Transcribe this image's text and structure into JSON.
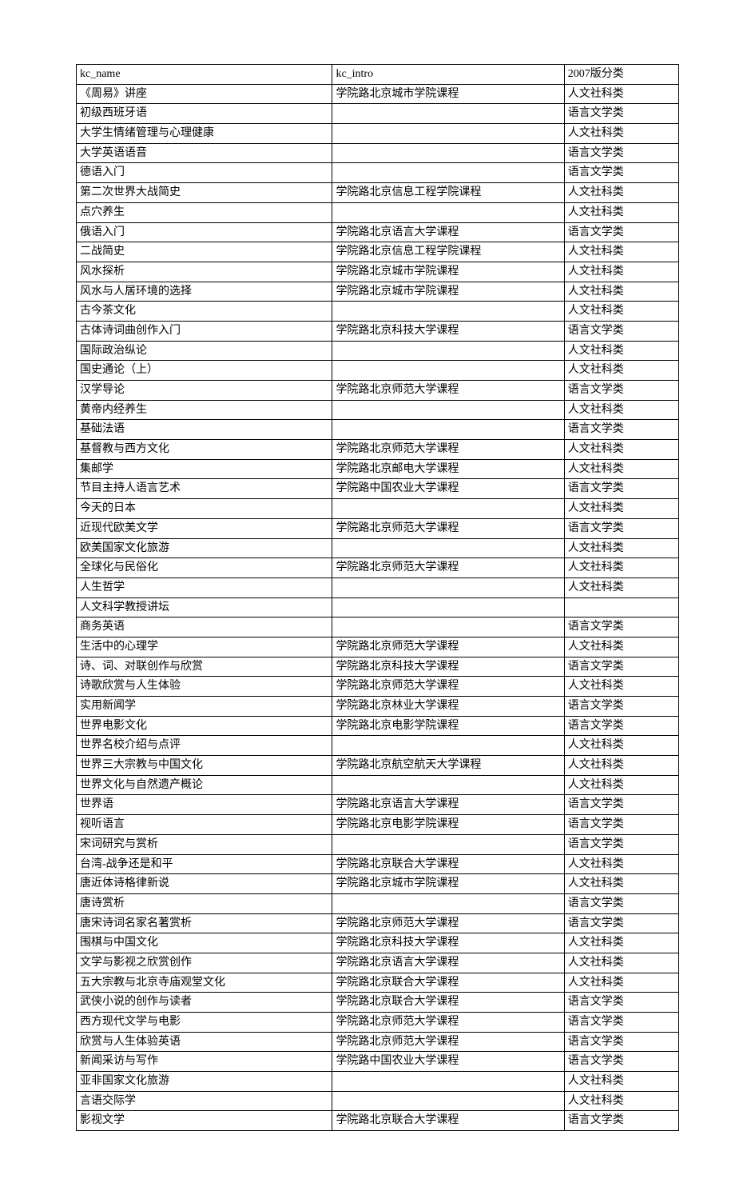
{
  "table": {
    "columns": [
      "kc_name",
      "kc_intro",
      "2007版分类"
    ],
    "col_widths": [
      "42.5%",
      "38.5%",
      "19%"
    ],
    "border_color": "#000000",
    "background_color": "#ffffff",
    "text_color": "#000000",
    "font_size": 14,
    "rows": [
      [
        "《周易》讲座",
        "学院路北京城市学院课程",
        "人文社科类"
      ],
      [
        "初级西班牙语",
        "",
        "语言文学类"
      ],
      [
        "大学生情绪管理与心理健康",
        "",
        "人文社科类"
      ],
      [
        "大学英语语音",
        "",
        "语言文学类"
      ],
      [
        "德语入门",
        "",
        "语言文学类"
      ],
      [
        "第二次世界大战简史",
        "学院路北京信息工程学院课程",
        "人文社科类"
      ],
      [
        "点穴养生",
        "",
        "人文社科类"
      ],
      [
        "俄语入门",
        "学院路北京语言大学课程",
        "语言文学类"
      ],
      [
        "二战简史",
        "学院路北京信息工程学院课程",
        "人文社科类"
      ],
      [
        "风水探析",
        "学院路北京城市学院课程",
        "人文社科类"
      ],
      [
        "风水与人居环境的选择",
        "学院路北京城市学院课程",
        "人文社科类"
      ],
      [
        "古今茶文化",
        "",
        "人文社科类"
      ],
      [
        "古体诗词曲创作入门",
        "学院路北京科技大学课程",
        "语言文学类"
      ],
      [
        "国际政治纵论",
        "",
        "人文社科类"
      ],
      [
        "国史通论（上）",
        "",
        "人文社科类"
      ],
      [
        "汉学导论",
        "学院路北京师范大学课程",
        "语言文学类"
      ],
      [
        "黄帝内经养生",
        "",
        "人文社科类"
      ],
      [
        "基础法语",
        "",
        "语言文学类"
      ],
      [
        "基督教与西方文化",
        "学院路北京师范大学课程",
        "人文社科类"
      ],
      [
        "集邮学",
        "学院路北京邮电大学课程",
        "人文社科类"
      ],
      [
        "节目主持人语言艺术",
        "学院路中国农业大学课程",
        "语言文学类"
      ],
      [
        "今天的日本",
        "",
        "人文社科类"
      ],
      [
        "近现代欧美文学",
        "学院路北京师范大学课程",
        "语言文学类"
      ],
      [
        "欧美国家文化旅游",
        "",
        "人文社科类"
      ],
      [
        "全球化与民俗化",
        "学院路北京师范大学课程",
        "人文社科类"
      ],
      [
        "人生哲学",
        "",
        "人文社科类"
      ],
      [
        "人文科学教授讲坛",
        "",
        ""
      ],
      [
        "商务英语",
        "",
        "语言文学类"
      ],
      [
        "生活中的心理学",
        "学院路北京师范大学课程",
        "人文社科类"
      ],
      [
        "诗、词、对联创作与欣赏",
        "学院路北京科技大学课程",
        "语言文学类"
      ],
      [
        "诗歌欣赏与人生体验",
        "学院路北京师范大学课程",
        "人文社科类"
      ],
      [
        "实用新闻学",
        "学院路北京林业大学课程",
        "语言文学类"
      ],
      [
        "世界电影文化",
        "学院路北京电影学院课程",
        "语言文学类"
      ],
      [
        "世界名校介绍与点评",
        "",
        "人文社科类"
      ],
      [
        "世界三大宗教与中国文化",
        "学院路北京航空航天大学课程",
        "人文社科类"
      ],
      [
        "世界文化与自然遗产概论",
        "",
        "人文社科类"
      ],
      [
        "世界语",
        "学院路北京语言大学课程",
        "语言文学类"
      ],
      [
        "视听语言",
        "学院路北京电影学院课程",
        "语言文学类"
      ],
      [
        "宋词研究与赏析",
        "",
        "语言文学类"
      ],
      [
        "台湾-战争还是和平",
        "学院路北京联合大学课程",
        "人文社科类"
      ],
      [
        "唐近体诗格律新说",
        "学院路北京城市学院课程",
        "人文社科类"
      ],
      [
        "唐诗赏析",
        "",
        "语言文学类"
      ],
      [
        "唐宋诗词名家名著赏析",
        "学院路北京师范大学课程",
        "语言文学类"
      ],
      [
        "围棋与中国文化",
        "学院路北京科技大学课程",
        "人文社科类"
      ],
      [
        "文学与影视之欣赏创作",
        "学院路北京语言大学课程",
        "人文社科类"
      ],
      [
        "五大宗教与北京寺庙观堂文化",
        "学院路北京联合大学课程",
        "人文社科类"
      ],
      [
        "武侠小说的创作与读者",
        "学院路北京联合大学课程",
        "语言文学类"
      ],
      [
        "西方现代文学与电影",
        "学院路北京师范大学课程",
        "语言文学类"
      ],
      [
        "欣赏与人生体验英语",
        "学院路北京师范大学课程",
        "语言文学类"
      ],
      [
        "新闻采访与写作",
        "学院路中国农业大学课程",
        "语言文学类"
      ],
      [
        "亚非国家文化旅游",
        "",
        "人文社科类"
      ],
      [
        "言语交际学",
        "",
        "人文社科类"
      ],
      [
        "影视文学",
        "学院路北京联合大学课程",
        "语言文学类"
      ]
    ]
  }
}
